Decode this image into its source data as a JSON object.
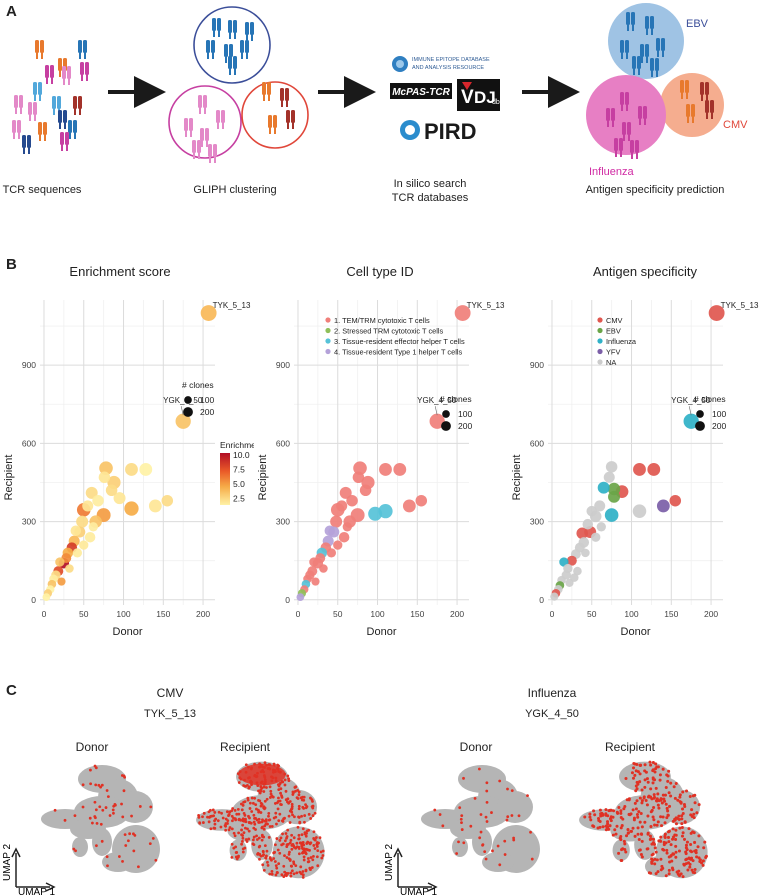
{
  "panels": {
    "a_label": "A",
    "b_label": "B",
    "c_label": "C"
  },
  "panel_a": {
    "steps": [
      "TCR sequences",
      "GLIPH clustering",
      "In silico search\nTCR databases",
      "Antigen specificity prediction"
    ],
    "databases": {
      "iedb_line1": "IMMUNE EPITOPE DATABASE",
      "iedb_line2": "AND ANALYSIS RESOURCE",
      "mcpas": "McPAS-TCR",
      "vdjdb_v": "V",
      "vdjdb_dj": "DJ",
      "vdjdb_db": "db",
      "pird": "PIRD"
    },
    "antigen_groups": [
      "EBV",
      "CMV",
      "Influenza"
    ],
    "colors": {
      "ebv_fill": "#9fc3e4",
      "ebv_text": "#3b4e99",
      "cmv_fill": "#f5ad8f",
      "cmv_text": "#e0473a",
      "influenza_fill": "#e77fc4",
      "influenza_text": "#d02aa3",
      "arrow": "#1a1a1a",
      "tcr_pink": "#e389c8",
      "tcr_blue": "#2775b6",
      "tcr_orange": "#e8792d",
      "tcr_magenta": "#c63fa1",
      "tcr_brown": "#a3322a",
      "tcr_navy": "#254a8f",
      "tcr_lightblue": "#52a8db"
    }
  },
  "chart_data": [
    {
      "type": "scatter",
      "title": "Enrichment score",
      "xlabel": "Donor",
      "ylabel": "Recipient",
      "xlim": [
        -5,
        215
      ],
      "ylim": [
        -20,
        1150
      ],
      "xticks": [
        0,
        50,
        100,
        150,
        200
      ],
      "yticks": [
        0,
        300,
        600,
        900
      ],
      "size_legend_title": "# clones",
      "size_legend": [
        100,
        200
      ],
      "color_legend_title": "Enrichment",
      "color_legend": [
        10.0,
        7.5,
        5.0,
        2.5
      ],
      "annotations": [
        {
          "label": "TYK_5_13",
          "x": 207,
          "y": 1100
        },
        {
          "label": "YGK_4_50",
          "x": 175,
          "y": 685
        }
      ],
      "points": [
        {
          "x": 207,
          "y": 1100,
          "s": 200,
          "c": 4.5
        },
        {
          "x": 175,
          "y": 685,
          "s": 180,
          "c": 4.0
        },
        {
          "x": 155,
          "y": 380,
          "s": 80,
          "c": 3.0
        },
        {
          "x": 140,
          "y": 360,
          "s": 110,
          "c": 2.5
        },
        {
          "x": 128,
          "y": 500,
          "s": 110,
          "c": 2.0
        },
        {
          "x": 110,
          "y": 500,
          "s": 110,
          "c": 3.0
        },
        {
          "x": 110,
          "y": 350,
          "s": 150,
          "c": 5.0
        },
        {
          "x": 88,
          "y": 450,
          "s": 120,
          "c": 3.5
        },
        {
          "x": 85,
          "y": 420,
          "s": 80,
          "c": 3.0
        },
        {
          "x": 95,
          "y": 390,
          "s": 90,
          "c": 2.5
        },
        {
          "x": 78,
          "y": 505,
          "s": 130,
          "c": 4.0
        },
        {
          "x": 76,
          "y": 470,
          "s": 80,
          "c": 2.5
        },
        {
          "x": 75,
          "y": 325,
          "s": 140,
          "c": 5.5
        },
        {
          "x": 68,
          "y": 380,
          "s": 80,
          "c": 2.2
        },
        {
          "x": 60,
          "y": 410,
          "s": 90,
          "c": 3.0
        },
        {
          "x": 65,
          "y": 300,
          "s": 100,
          "c": 4.0
        },
        {
          "x": 55,
          "y": 360,
          "s": 70,
          "c": 2.5
        },
        {
          "x": 50,
          "y": 345,
          "s": 130,
          "c": 6.5
        },
        {
          "x": 48,
          "y": 300,
          "s": 90,
          "c": 3.0
        },
        {
          "x": 58,
          "y": 240,
          "s": 60,
          "c": 2.3
        },
        {
          "x": 45,
          "y": 260,
          "s": 70,
          "c": 3.5
        },
        {
          "x": 40,
          "y": 265,
          "s": 60,
          "c": 2.5
        },
        {
          "x": 38,
          "y": 225,
          "s": 70,
          "c": 4.5
        },
        {
          "x": 35,
          "y": 200,
          "s": 60,
          "c": 8.5
        },
        {
          "x": 30,
          "y": 180,
          "s": 60,
          "c": 5.0
        },
        {
          "x": 28,
          "y": 160,
          "s": 50,
          "c": 6.0
        },
        {
          "x": 25,
          "y": 140,
          "s": 60,
          "c": 10.0
        },
        {
          "x": 20,
          "y": 145,
          "s": 40,
          "c": 4.0
        },
        {
          "x": 18,
          "y": 110,
          "s": 50,
          "c": 8.0
        },
        {
          "x": 15,
          "y": 95,
          "s": 40,
          "c": 3.0
        },
        {
          "x": 12,
          "y": 80,
          "s": 30,
          "c": 2.2
        },
        {
          "x": 10,
          "y": 60,
          "s": 30,
          "c": 4.0
        },
        {
          "x": 8,
          "y": 40,
          "s": 25,
          "c": 2.0
        },
        {
          "x": 5,
          "y": 25,
          "s": 25,
          "c": 3.5
        },
        {
          "x": 3,
          "y": 10,
          "s": 20,
          "c": 2.0
        },
        {
          "x": 42,
          "y": 180,
          "s": 40,
          "c": 2.3
        },
        {
          "x": 32,
          "y": 120,
          "s": 30,
          "c": 3.0
        },
        {
          "x": 22,
          "y": 70,
          "s": 25,
          "c": 5.5
        },
        {
          "x": 50,
          "y": 210,
          "s": 40,
          "c": 2.4
        },
        {
          "x": 62,
          "y": 280,
          "s": 40,
          "c": 2.2
        }
      ]
    },
    {
      "type": "scatter",
      "title": "Cell type ID",
      "xlabel": "Donor",
      "ylabel": "Recipient",
      "xlim": [
        -5,
        215
      ],
      "ylim": [
        -20,
        1150
      ],
      "xticks": [
        0,
        50,
        100,
        150,
        200
      ],
      "yticks": [
        0,
        300,
        600,
        900
      ],
      "size_legend_title": "# clones",
      "size_legend": [
        100,
        200
      ],
      "legend": [
        {
          "label": "1. TEM/TRM cytotoxic T cells",
          "color": "#f07f7a"
        },
        {
          "label": "2. Stressed TRM cytotoxic T cells",
          "color": "#8fbf5a"
        },
        {
          "label": "3. Tissue-resident effector helper T cells",
          "color": "#56c2d8"
        },
        {
          "label": "4. Tissue-resident Type 1 helper T cells",
          "color": "#b4a2d9"
        }
      ],
      "annotations": [
        {
          "label": "TYK_5_13",
          "x": 207,
          "y": 1100
        },
        {
          "label": "YGK_4_50",
          "x": 175,
          "y": 685
        }
      ],
      "points": [
        {
          "x": 207,
          "y": 1100,
          "s": 200,
          "g": 1
        },
        {
          "x": 175,
          "y": 685,
          "s": 180,
          "g": 1
        },
        {
          "x": 155,
          "y": 380,
          "s": 80,
          "g": 1
        },
        {
          "x": 140,
          "y": 360,
          "s": 110,
          "g": 1
        },
        {
          "x": 128,
          "y": 500,
          "s": 110,
          "g": 1
        },
        {
          "x": 110,
          "y": 500,
          "s": 110,
          "g": 1
        },
        {
          "x": 110,
          "y": 340,
          "s": 150,
          "g": 3
        },
        {
          "x": 88,
          "y": 450,
          "s": 120,
          "g": 1
        },
        {
          "x": 85,
          "y": 420,
          "s": 80,
          "g": 1
        },
        {
          "x": 97,
          "y": 330,
          "s": 140,
          "g": 3
        },
        {
          "x": 78,
          "y": 505,
          "s": 130,
          "g": 1
        },
        {
          "x": 76,
          "y": 470,
          "s": 80,
          "g": 1
        },
        {
          "x": 75,
          "y": 325,
          "s": 140,
          "g": 1
        },
        {
          "x": 68,
          "y": 380,
          "s": 80,
          "g": 1
        },
        {
          "x": 60,
          "y": 410,
          "s": 90,
          "g": 1
        },
        {
          "x": 65,
          "y": 300,
          "s": 100,
          "g": 1
        },
        {
          "x": 55,
          "y": 360,
          "s": 70,
          "g": 1
        },
        {
          "x": 50,
          "y": 345,
          "s": 130,
          "g": 1
        },
        {
          "x": 48,
          "y": 300,
          "s": 90,
          "g": 1
        },
        {
          "x": 58,
          "y": 240,
          "s": 60,
          "g": 1
        },
        {
          "x": 45,
          "y": 260,
          "s": 70,
          "g": 4
        },
        {
          "x": 40,
          "y": 265,
          "s": 60,
          "g": 4
        },
        {
          "x": 38,
          "y": 225,
          "s": 70,
          "g": 4
        },
        {
          "x": 35,
          "y": 200,
          "s": 60,
          "g": 1
        },
        {
          "x": 30,
          "y": 180,
          "s": 60,
          "g": 3
        },
        {
          "x": 28,
          "y": 160,
          "s": 50,
          "g": 1
        },
        {
          "x": 25,
          "y": 140,
          "s": 60,
          "g": 1
        },
        {
          "x": 20,
          "y": 145,
          "s": 40,
          "g": 1
        },
        {
          "x": 18,
          "y": 110,
          "s": 50,
          "g": 1
        },
        {
          "x": 15,
          "y": 95,
          "s": 40,
          "g": 1
        },
        {
          "x": 12,
          "y": 80,
          "s": 30,
          "g": 1
        },
        {
          "x": 10,
          "y": 60,
          "s": 30,
          "g": 3
        },
        {
          "x": 8,
          "y": 40,
          "s": 25,
          "g": 1
        },
        {
          "x": 5,
          "y": 25,
          "s": 25,
          "g": 2
        },
        {
          "x": 3,
          "y": 10,
          "s": 20,
          "g": 4
        },
        {
          "x": 42,
          "y": 180,
          "s": 40,
          "g": 1
        },
        {
          "x": 32,
          "y": 120,
          "s": 30,
          "g": 1
        },
        {
          "x": 22,
          "y": 70,
          "s": 25,
          "g": 1
        },
        {
          "x": 50,
          "y": 210,
          "s": 40,
          "g": 1
        },
        {
          "x": 62,
          "y": 280,
          "s": 40,
          "g": 1
        }
      ]
    },
    {
      "type": "scatter",
      "title": "Antigen specificity",
      "xlabel": "Donor",
      "ylabel": "Recipient",
      "xlim": [
        -5,
        215
      ],
      "ylim": [
        -20,
        1150
      ],
      "xticks": [
        0,
        50,
        100,
        150,
        200
      ],
      "yticks": [
        0,
        300,
        600,
        900
      ],
      "size_legend_title": "# clones",
      "size_legend": [
        100,
        200
      ],
      "legend": [
        {
          "label": "CMV",
          "color": "#e0574f"
        },
        {
          "label": "EBV",
          "color": "#6aa548"
        },
        {
          "label": "Influenza",
          "color": "#2fb1c7"
        },
        {
          "label": "YFV",
          "color": "#7b5ea7"
        },
        {
          "label": "NA",
          "color": "#cccccc"
        }
      ],
      "annotations": [
        {
          "label": "TYK_5_13",
          "x": 207,
          "y": 1100
        },
        {
          "label": "YGK_4_50",
          "x": 175,
          "y": 685
        }
      ],
      "points": [
        {
          "x": 207,
          "y": 1100,
          "s": 200,
          "g": "CMV"
        },
        {
          "x": 175,
          "y": 685,
          "s": 180,
          "g": "Influenza"
        },
        {
          "x": 155,
          "y": 380,
          "s": 80,
          "g": "CMV"
        },
        {
          "x": 140,
          "y": 360,
          "s": 110,
          "g": "YFV"
        },
        {
          "x": 128,
          "y": 500,
          "s": 110,
          "g": "CMV"
        },
        {
          "x": 110,
          "y": 500,
          "s": 110,
          "g": "CMV"
        },
        {
          "x": 110,
          "y": 340,
          "s": 130,
          "g": "NA"
        },
        {
          "x": 88,
          "y": 415,
          "s": 110,
          "g": "CMV"
        },
        {
          "x": 78,
          "y": 425,
          "s": 100,
          "g": "EBV"
        },
        {
          "x": 78,
          "y": 395,
          "s": 90,
          "g": "EBV"
        },
        {
          "x": 65,
          "y": 430,
          "s": 90,
          "g": "Influenza"
        },
        {
          "x": 75,
          "y": 325,
          "s": 130,
          "g": "Influenza"
        },
        {
          "x": 75,
          "y": 510,
          "s": 80,
          "g": "NA"
        },
        {
          "x": 72,
          "y": 470,
          "s": 70,
          "g": "NA"
        },
        {
          "x": 60,
          "y": 360,
          "s": 70,
          "g": "NA"
        },
        {
          "x": 55,
          "y": 320,
          "s": 80,
          "g": "NA"
        },
        {
          "x": 50,
          "y": 340,
          "s": 60,
          "g": "NA"
        },
        {
          "x": 45,
          "y": 290,
          "s": 60,
          "g": "NA"
        },
        {
          "x": 48,
          "y": 260,
          "s": 90,
          "g": "CMV"
        },
        {
          "x": 38,
          "y": 255,
          "s": 80,
          "g": "CMV"
        },
        {
          "x": 40,
          "y": 220,
          "s": 60,
          "g": "NA"
        },
        {
          "x": 35,
          "y": 200,
          "s": 50,
          "g": "NA"
        },
        {
          "x": 30,
          "y": 175,
          "s": 50,
          "g": "NA"
        },
        {
          "x": 25,
          "y": 150,
          "s": 50,
          "g": "CMV"
        },
        {
          "x": 15,
          "y": 145,
          "s": 40,
          "g": "Influenza"
        },
        {
          "x": 20,
          "y": 120,
          "s": 40,
          "g": "NA"
        },
        {
          "x": 18,
          "y": 95,
          "s": 40,
          "g": "NA"
        },
        {
          "x": 12,
          "y": 75,
          "s": 30,
          "g": "NA"
        },
        {
          "x": 10,
          "y": 55,
          "s": 30,
          "g": "EBV"
        },
        {
          "x": 8,
          "y": 40,
          "s": 30,
          "g": "NA"
        },
        {
          "x": 5,
          "y": 25,
          "s": 30,
          "g": "CMV"
        },
        {
          "x": 3,
          "y": 12,
          "s": 25,
          "g": "NA"
        },
        {
          "x": 32,
          "y": 110,
          "s": 30,
          "g": "NA"
        },
        {
          "x": 42,
          "y": 180,
          "s": 30,
          "g": "NA"
        },
        {
          "x": 55,
          "y": 240,
          "s": 40,
          "g": "NA"
        },
        {
          "x": 62,
          "y": 280,
          "s": 40,
          "g": "NA"
        },
        {
          "x": 22,
          "y": 65,
          "s": 25,
          "g": "NA"
        },
        {
          "x": 28,
          "y": 85,
          "s": 30,
          "g": "NA"
        }
      ]
    }
  ],
  "panel_c": {
    "groups": [
      {
        "title": "CMV",
        "clone": "TYK_5_13",
        "maps": [
          "Donor",
          "Recipient"
        ]
      },
      {
        "title": "Influenza",
        "clone": "YGK_4_50",
        "maps": [
          "Donor",
          "Recipient"
        ]
      }
    ],
    "axis_x": "UMAP 1",
    "axis_y": "UMAP 2",
    "colors": {
      "cell": "#b5b5b5",
      "hit": "#e03124"
    }
  }
}
